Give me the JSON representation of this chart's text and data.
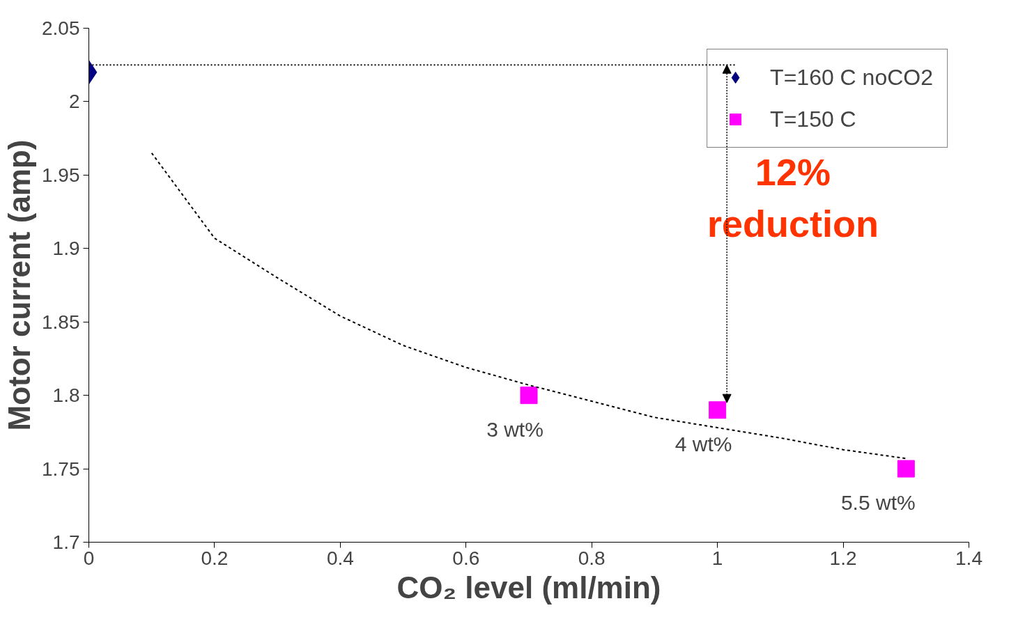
{
  "chart_data": {
    "type": "scatter",
    "xlabel": "CO₂ level (ml/min)",
    "ylabel": "Motor current (amp)",
    "xlim": [
      0,
      1.4
    ],
    "xticks": [
      0,
      0.2,
      0.4,
      0.6,
      0.8,
      1,
      1.2,
      1.4
    ],
    "ylim": [
      1.7,
      2.05
    ],
    "yticks": [
      1.7,
      1.75,
      1.8,
      1.85,
      1.9,
      1.95,
      2,
      2.05
    ],
    "grid": false,
    "legend": "top right",
    "series": [
      {
        "name": "T=160 C noCO2",
        "marker": "diamond",
        "color": "#000080",
        "x": [
          0
        ],
        "values": [
          2.02
        ]
      },
      {
        "name": "T=150 C",
        "marker": "square",
        "color": "#ff00ff",
        "x": [
          0.7,
          1.0,
          1.3
        ],
        "values": [
          1.8,
          1.79,
          1.75
        ]
      },
      {
        "type": "line",
        "line_style": "dotted",
        "color": "#000000",
        "x": [
          0,
          1.03
        ],
        "values": [
          2.025,
          2.025
        ]
      },
      {
        "type": "line",
        "line_style": "dashed",
        "color": "#000000",
        "x": [
          0.1,
          0.2,
          0.3,
          0.4,
          0.5,
          0.6,
          0.7,
          0.8,
          0.9,
          1.0,
          1.1,
          1.2,
          1.3
        ],
        "values": [
          1.965,
          1.907,
          1.88,
          1.854,
          1.834,
          1.819,
          1.807,
          1.796,
          1.785,
          1.778,
          1.771,
          1.763,
          1.757
        ]
      }
    ],
    "annotations": [
      {
        "text": "3 wt%",
        "x": 0.7,
        "y": 1.8
      },
      {
        "text": "4 wt%",
        "x": 1.0,
        "y": 1.79
      },
      {
        "text": "5.5 wt%",
        "x": 1.3,
        "y": 1.75
      },
      "12% reduction"
    ]
  }
}
